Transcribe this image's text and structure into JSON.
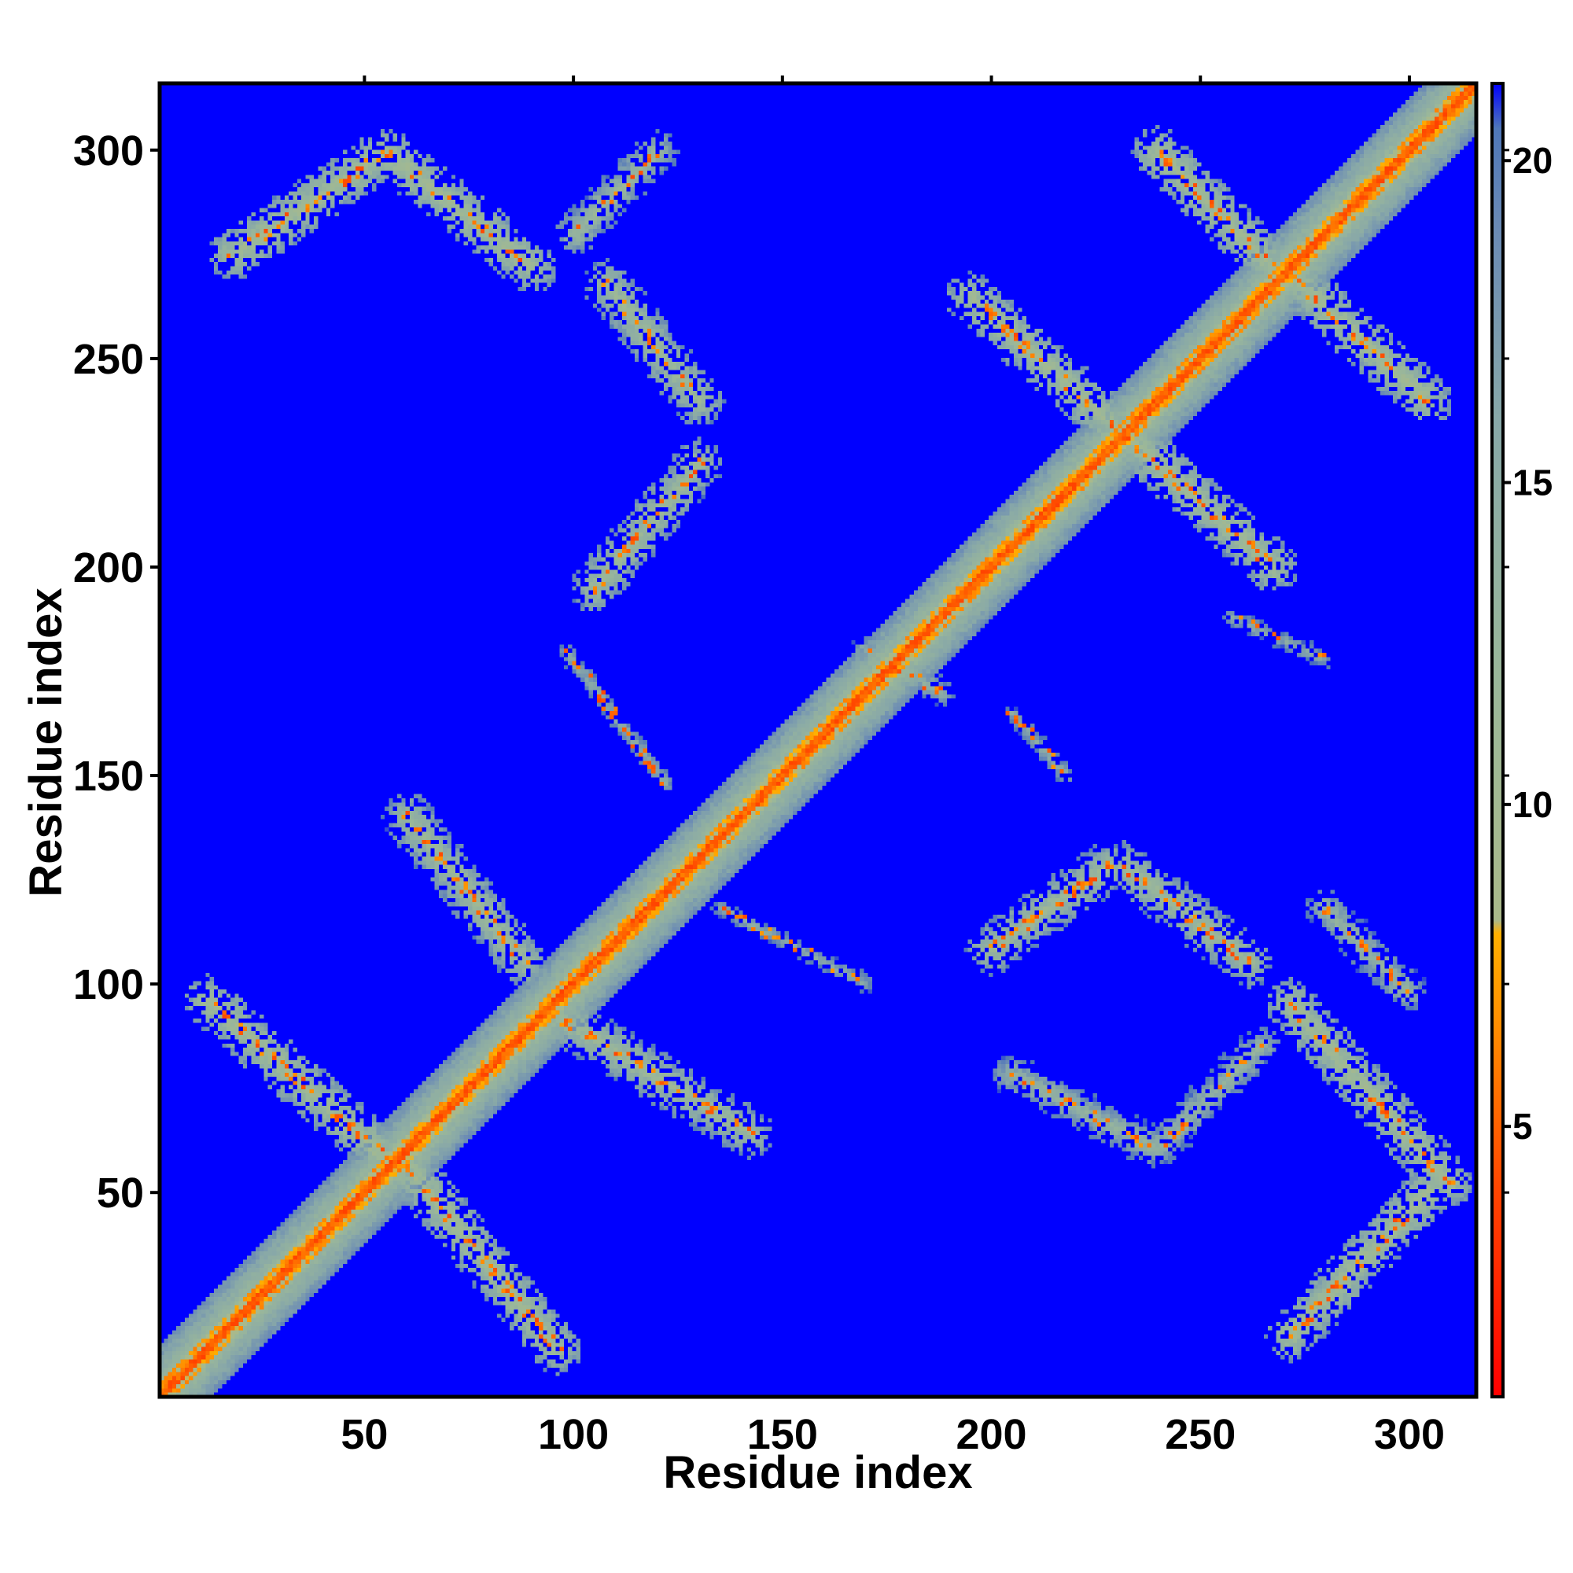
{
  "chart_data": {
    "type": "heatmap",
    "title": "",
    "xlabel": "Residue index",
    "ylabel": "Residue index",
    "xlim": [
      1,
      316
    ],
    "ylim": [
      1,
      316
    ],
    "x_ticks": [
      50,
      100,
      150,
      200,
      250,
      300
    ],
    "y_ticks": [
      50,
      100,
      150,
      200,
      250,
      300
    ],
    "colorbar": {
      "ticks": [
        5,
        10,
        15,
        20
      ],
      "range": [
        0.8,
        21.2
      ],
      "colors": [
        {
          "value": 0.8,
          "color": "#ff0000"
        },
        {
          "value": 4.0,
          "color": "#ff4500"
        },
        {
          "value": 6.5,
          "color": "#ff8c00"
        },
        {
          "value": 8.0,
          "color": "#ffb000"
        },
        {
          "value": 8.2,
          "color": "#aab98a"
        },
        {
          "value": 12.0,
          "color": "#9ab79a"
        },
        {
          "value": 16.0,
          "color": "#88a8a8"
        },
        {
          "value": 19.0,
          "color": "#6a8ab5"
        },
        {
          "value": 20.5,
          "color": "#4f77b8"
        },
        {
          "value": 21.2,
          "color": "#0000ff"
        }
      ]
    },
    "background_value": 21.2,
    "diagonal": {
      "from": 1,
      "to": 316,
      "core_distance": 3.8,
      "halo_width": 9
    },
    "contact_bands": [
      {
        "from": [
          12,
          96
        ],
        "to": [
          58,
          55
        ],
        "width": 6,
        "distance": 9
      },
      {
        "from": [
          58,
          58
        ],
        "to": [
          96,
          12
        ],
        "width": 6,
        "distance": 9
      },
      {
        "from": [
          60,
          140
        ],
        "to": [
          88,
          105
        ],
        "width": 6,
        "distance": 10
      },
      {
        "from": [
          96,
          92
        ],
        "to": [
          142,
          64
        ],
        "width": 6,
        "distance": 10
      },
      {
        "from": [
          105,
          195
        ],
        "to": [
          130,
          225
        ],
        "width": 6,
        "distance": 10
      },
      {
        "from": [
          108,
          268
        ],
        "to": [
          130,
          240
        ],
        "width": 6,
        "distance": 10
      },
      {
        "from": [
          18,
          275
        ],
        "to": [
          52,
          298
        ],
        "width": 6,
        "distance": 9
      },
      {
        "from": [
          55,
          300
        ],
        "to": [
          90,
          272
        ],
        "width": 6,
        "distance": 9
      },
      {
        "from": [
          100,
          280
        ],
        "to": [
          120,
          300
        ],
        "width": 5,
        "distance": 11
      },
      {
        "from": [
          195,
          265
        ],
        "to": [
          232,
          232
        ],
        "width": 6,
        "distance": 9
      },
      {
        "from": [
          232,
          232
        ],
        "to": [
          268,
          200
        ],
        "width": 6,
        "distance": 9
      },
      {
        "from": [
          240,
          300
        ],
        "to": [
          268,
          272
        ],
        "width": 6,
        "distance": 9
      },
      {
        "from": [
          270,
          272
        ],
        "to": [
          305,
          240
        ],
        "width": 6,
        "distance": 9
      },
      {
        "from": [
          200,
          108
        ],
        "to": [
          228,
          128
        ],
        "width": 6,
        "distance": 10
      },
      {
        "from": [
          232,
          128
        ],
        "to": [
          262,
          105
        ],
        "width": 6,
        "distance": 10
      },
      {
        "from": [
          272,
          95
        ],
        "to": [
          310,
          52
        ],
        "width": 6,
        "distance": 9
      },
      {
        "from": [
          272,
          15
        ],
        "to": [
          305,
          50
        ],
        "width": 6,
        "distance": 9
      },
      {
        "from": [
          205,
          78
        ],
        "to": [
          240,
          60
        ],
        "width": 5,
        "distance": 12
      },
      {
        "from": [
          240,
          60
        ],
        "to": [
          265,
          85
        ],
        "width": 5,
        "distance": 12
      },
      {
        "from": [
          280,
          118
        ],
        "to": [
          300,
          98
        ],
        "width": 5,
        "distance": 12
      },
      {
        "from": [
          98,
          180
        ],
        "to": [
          122,
          148
        ],
        "width": 3,
        "distance": 14
      },
      {
        "from": [
          135,
          118
        ],
        "to": [
          170,
          100
        ],
        "width": 3,
        "distance": 14
      },
      {
        "from": [
          170,
          180
        ],
        "to": [
          188,
          170
        ],
        "width": 4,
        "distance": 13
      },
      {
        "from": [
          205,
          165
        ],
        "to": [
          218,
          150
        ],
        "width": 3,
        "distance": 14
      },
      {
        "from": [
          258,
          188
        ],
        "to": [
          280,
          178
        ],
        "width": 3,
        "distance": 14
      }
    ]
  }
}
